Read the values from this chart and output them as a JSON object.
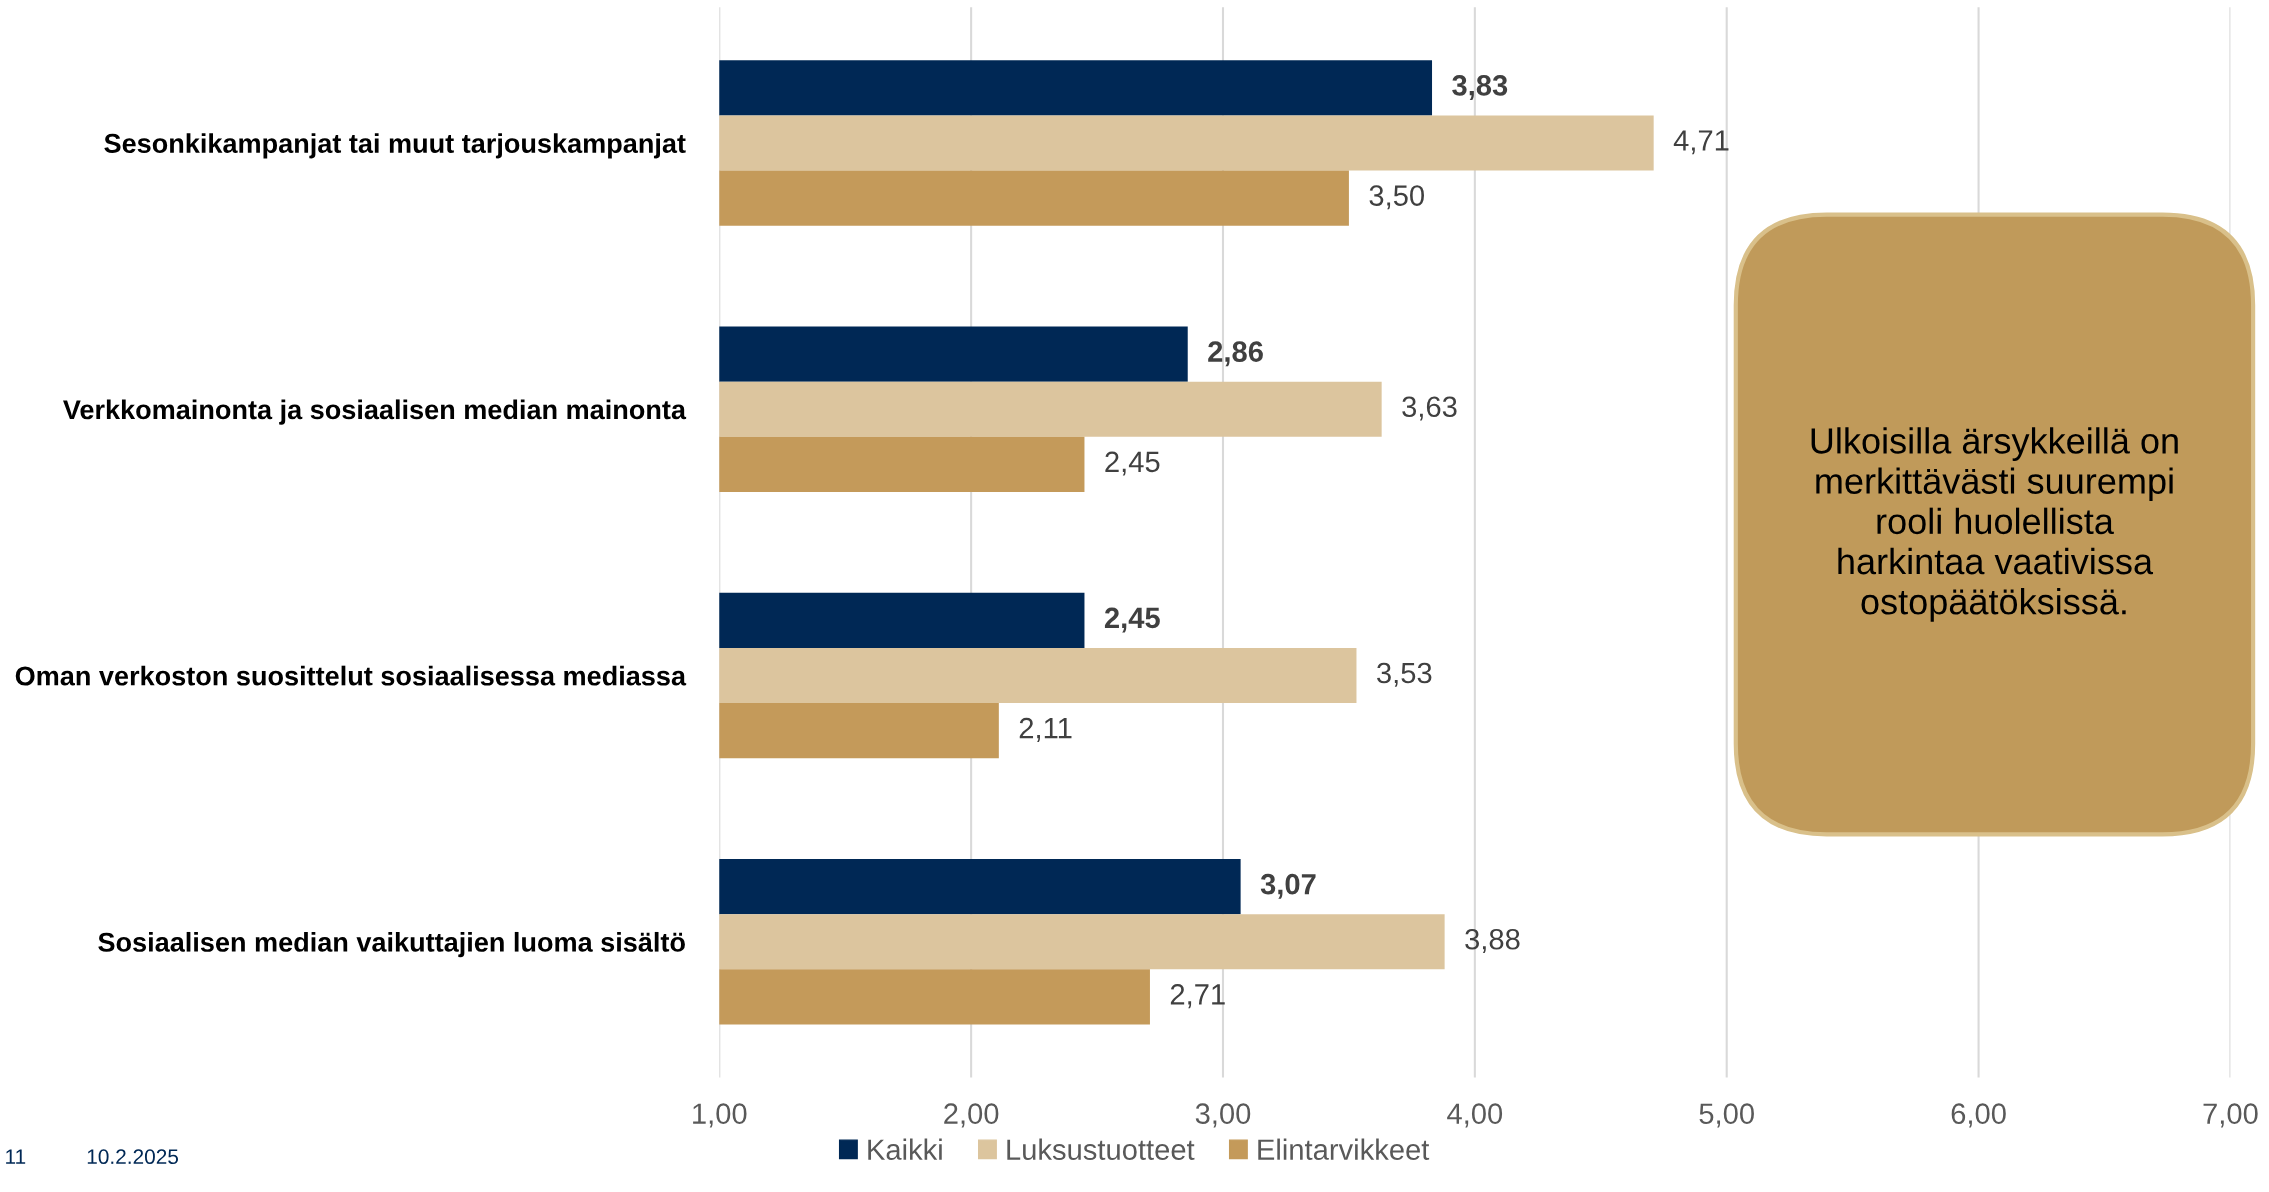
{
  "chart_data": {
    "type": "bar",
    "orientation": "horizontal",
    "categories": [
      "Sesonkikampanjat tai muut tarjouskampanjat",
      "Verkkomainonta ja sosiaalisen median mainonta",
      "Oman verkoston suosittelut sosiaalisessa mediassa",
      "Sosiaalisen median vaikuttajien luoma sisältö"
    ],
    "series": [
      {
        "name": "Kaikki",
        "color": "#002855",
        "values": [
          3.83,
          2.86,
          2.45,
          3.07
        ],
        "value_labels": [
          "3,83",
          "2,86",
          "2,45",
          "3,07"
        ]
      },
      {
        "name": "Luksustuotteet",
        "color": "#dcc59e",
        "values": [
          4.71,
          3.63,
          3.53,
          3.88
        ],
        "value_labels": [
          "4,71",
          "3,63",
          "3,53",
          "3,88"
        ]
      },
      {
        "name": "Elintarvikkeet",
        "color": "#c49a5a",
        "values": [
          3.5,
          2.45,
          2.11,
          2.71
        ],
        "value_labels": [
          "3,50",
          "2,45",
          "2,11",
          "2,71"
        ]
      }
    ],
    "xlim": [
      1,
      7
    ],
    "xticks": [
      {
        "value": 1,
        "label": "1,00"
      },
      {
        "value": 2,
        "label": "2,00"
      },
      {
        "value": 3,
        "label": "3,00"
      },
      {
        "value": 4,
        "label": "4,00"
      },
      {
        "value": 5,
        "label": "5,00"
      },
      {
        "value": 6,
        "label": "6,00"
      },
      {
        "value": 7,
        "label": "7,00"
      }
    ],
    "grid": "x",
    "legend": "bottom",
    "annotations": [
      "Ulkoisilla ärsykkeillä on\nmerkittävästi suurempi\nrooli huolellista\nharkintaa vaativissa\nostopäätöksissä.",
      "11",
      "10.2.2025"
    ]
  }
}
